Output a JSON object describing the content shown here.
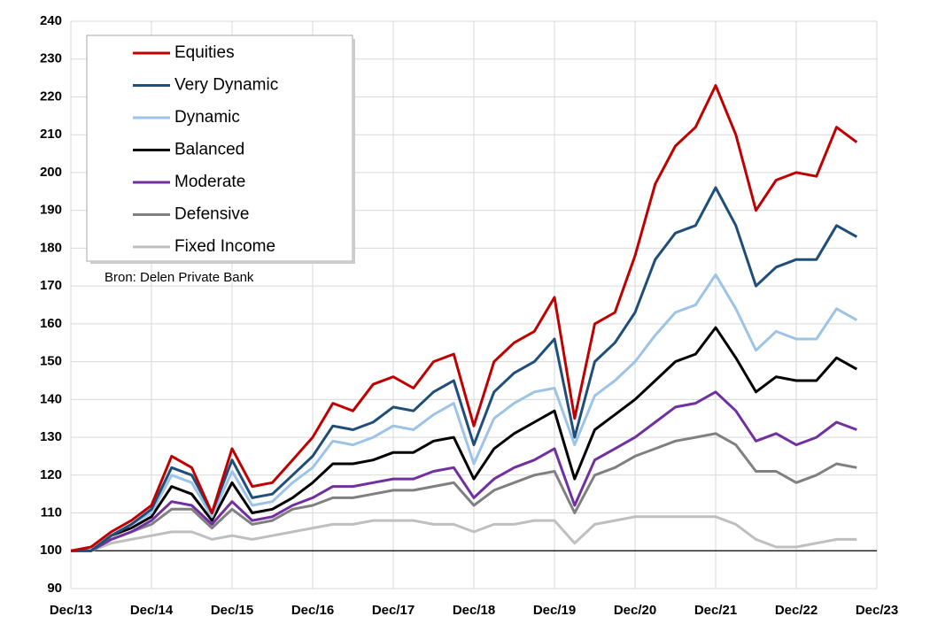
{
  "chart_data": {
    "type": "line",
    "annotation": "Bron: Delen Private Bank",
    "categories": [
      "Dec/13",
      null,
      null,
      null,
      "Dec/14",
      null,
      null,
      null,
      "Dec/15",
      null,
      null,
      null,
      "Dec/16",
      null,
      null,
      null,
      "Dec/17",
      null,
      null,
      null,
      "Dec/18",
      null,
      null,
      null,
      "Dec/19",
      null,
      null,
      null,
      "Dec/20",
      null,
      null,
      null,
      "Dec/21",
      null,
      null,
      null,
      "Dec/22",
      null,
      null,
      null,
      "Dec/23"
    ],
    "series": [
      {
        "name": "Equities",
        "color": "#c00000",
        "values": [
          100,
          101,
          105,
          108,
          112,
          125,
          122,
          110,
          127,
          117,
          118,
          124,
          130,
          139,
          137,
          144,
          146,
          143,
          150,
          152,
          133,
          150,
          155,
          158,
          167,
          135,
          160,
          163,
          178,
          197,
          207,
          212,
          223,
          210,
          190,
          198,
          200,
          199,
          212,
          208,
          null
        ]
      },
      {
        "name": "Very Dynamic",
        "color": "#1f4e79",
        "values": [
          100,
          100,
          104,
          107,
          111,
          122,
          120,
          110,
          124,
          114,
          115,
          120,
          125,
          133,
          132,
          134,
          138,
          137,
          142,
          145,
          128,
          142,
          147,
          150,
          156,
          130,
          150,
          155,
          163,
          177,
          184,
          186,
          196,
          186,
          170,
          175,
          177,
          177,
          186,
          183,
          null
        ]
      },
      {
        "name": "Dynamic",
        "color": "#9dc3e6",
        "values": [
          100,
          100,
          104,
          107,
          110,
          120,
          118,
          109,
          121,
          112,
          113,
          118,
          122,
          129,
          128,
          130,
          133,
          132,
          136,
          139,
          123,
          135,
          139,
          142,
          143,
          128,
          141,
          145,
          150,
          157,
          163,
          165,
          173,
          164,
          153,
          158,
          156,
          156,
          164,
          161,
          null
        ]
      },
      {
        "name": "Balanced",
        "color": "#000000",
        "values": [
          100,
          100,
          104,
          106,
          109,
          117,
          115,
          108,
          118,
          110,
          111,
          114,
          118,
          123,
          123,
          124,
          126,
          126,
          129,
          130,
          119,
          127,
          131,
          134,
          137,
          119,
          132,
          136,
          140,
          145,
          150,
          152,
          159,
          151,
          142,
          146,
          145,
          145,
          151,
          148,
          null
        ]
      },
      {
        "name": "Moderate",
        "color": "#7030a0",
        "values": [
          100,
          100,
          103,
          105,
          108,
          113,
          112,
          107,
          113,
          108,
          109,
          112,
          114,
          117,
          117,
          118,
          119,
          119,
          121,
          122,
          114,
          119,
          122,
          124,
          127,
          112,
          124,
          127,
          130,
          134,
          138,
          139,
          142,
          137,
          129,
          131,
          128,
          130,
          134,
          132,
          null
        ]
      },
      {
        "name": "Defensive",
        "color": "#808080",
        "values": [
          100,
          100,
          103,
          105,
          107,
          111,
          111,
          106,
          111,
          107,
          108,
          111,
          112,
          114,
          114,
          115,
          116,
          116,
          117,
          118,
          112,
          116,
          118,
          120,
          121,
          110,
          120,
          122,
          125,
          127,
          129,
          130,
          131,
          128,
          121,
          121,
          118,
          120,
          123,
          122,
          null
        ]
      },
      {
        "name": "Fixed Income",
        "color": "#bfbfbf",
        "values": [
          100,
          100,
          102,
          103,
          104,
          105,
          105,
          103,
          104,
          103,
          104,
          105,
          106,
          107,
          107,
          108,
          108,
          108,
          107,
          107,
          105,
          107,
          107,
          108,
          108,
          102,
          107,
          108,
          109,
          109,
          109,
          109,
          109,
          107,
          103,
          101,
          101,
          102,
          103,
          103,
          null
        ]
      }
    ],
    "ylim": [
      90,
      240
    ],
    "yticks": [
      90,
      100,
      110,
      120,
      130,
      140,
      150,
      160,
      170,
      180,
      190,
      200,
      210,
      220,
      230,
      240
    ],
    "reference_line": 100,
    "grid": true,
    "legend": "upper left"
  }
}
